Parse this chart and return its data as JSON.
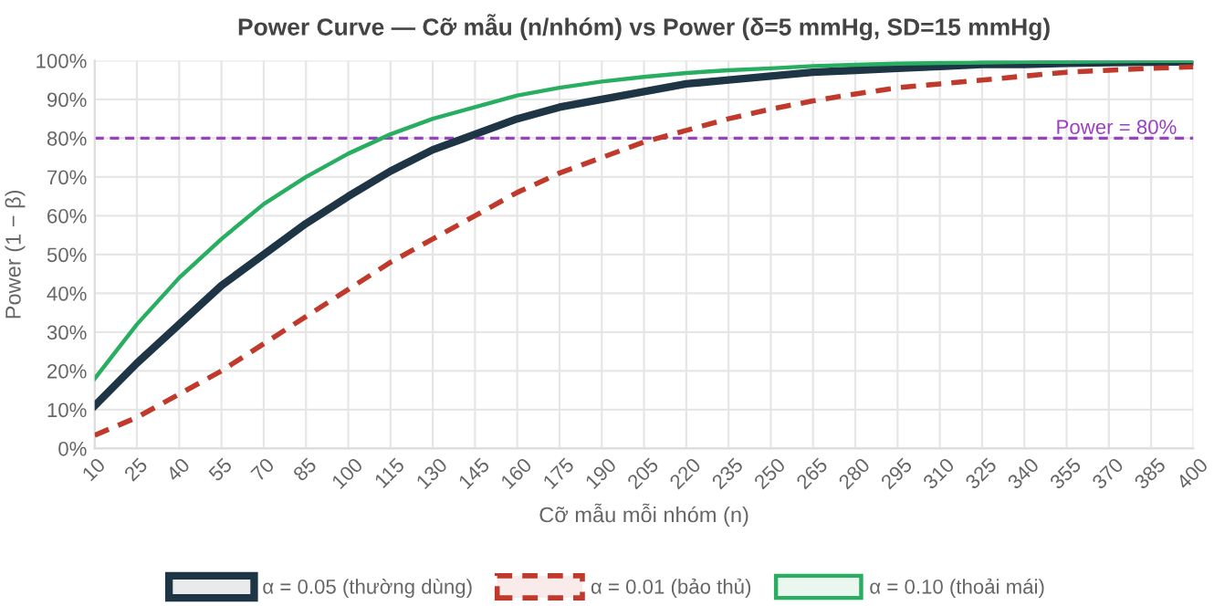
{
  "chart_data": {
    "type": "line",
    "title": "Power Curve — Cỡ mẫu (n/nhóm) vs Power (δ=5 mmHg, SD=15 mmHg)",
    "xlabel": "Cỡ mẫu mỗi nhóm (n)",
    "ylabel": "Power (1 − β)",
    "x": [
      10,
      25,
      40,
      55,
      70,
      85,
      100,
      115,
      130,
      145,
      160,
      175,
      190,
      205,
      220,
      235,
      250,
      265,
      280,
      295,
      310,
      325,
      340,
      355,
      370,
      385,
      400
    ],
    "series": [
      {
        "name": "α = 0.05 (thường dùng)",
        "color": "#1d3545",
        "line_style": "solid",
        "values": [
          11,
          22,
          32,
          42,
          50,
          58,
          65,
          71.5,
          77,
          81,
          85,
          88,
          90,
          92,
          94,
          95,
          96,
          97,
          97.5,
          98,
          98.5,
          99,
          99,
          99.3,
          99.5,
          99.6,
          99.7
        ]
      },
      {
        "name": "α = 0.01 (bảo thủ)",
        "color": "#c0392b",
        "line_style": "dashed",
        "values": [
          3.4,
          8,
          14,
          20,
          27,
          34,
          41,
          48,
          54,
          60,
          66,
          71,
          75,
          79,
          82,
          85,
          87.5,
          89.6,
          91.4,
          93,
          94,
          95,
          96,
          97,
          97.5,
          98,
          98.4
        ]
      },
      {
        "name": "α = 0.10 (thoải mái)",
        "color": "#27ae60",
        "line_style": "solid",
        "values": [
          18,
          32,
          44,
          54,
          63,
          70,
          76,
          81,
          85,
          88,
          91,
          93,
          94.6,
          95.8,
          96.8,
          97.5,
          98,
          98.6,
          98.9,
          99.2,
          99.4,
          99.5,
          99.7,
          99.7,
          99.8,
          99.9,
          99.9
        ]
      }
    ],
    "xlim": [
      10,
      400
    ],
    "xticks": [
      10,
      25,
      40,
      55,
      70,
      85,
      100,
      115,
      130,
      145,
      160,
      175,
      190,
      205,
      220,
      235,
      250,
      265,
      280,
      295,
      310,
      325,
      340,
      355,
      370,
      385,
      400
    ],
    "ylim": [
      0,
      100
    ],
    "yticks": [
      {
        "value": 0,
        "label": "0%"
      },
      {
        "value": 10,
        "label": "10%"
      },
      {
        "value": 20,
        "label": "20%"
      },
      {
        "value": 30,
        "label": "30%"
      },
      {
        "value": 40,
        "label": "40%"
      },
      {
        "value": 50,
        "label": "50%"
      },
      {
        "value": 60,
        "label": "60%"
      },
      {
        "value": 70,
        "label": "70%"
      },
      {
        "value": 80,
        "label": "80%"
      },
      {
        "value": 90,
        "label": "90%"
      },
      {
        "value": 100,
        "label": "100%"
      }
    ],
    "ref_lines": [
      {
        "axis": "y",
        "value": 80,
        "label": "Power = 80%",
        "color": "#9b3fc4",
        "line_style": "dashed"
      }
    ],
    "grid": true,
    "legend": "bottom",
    "marker": "none"
  }
}
